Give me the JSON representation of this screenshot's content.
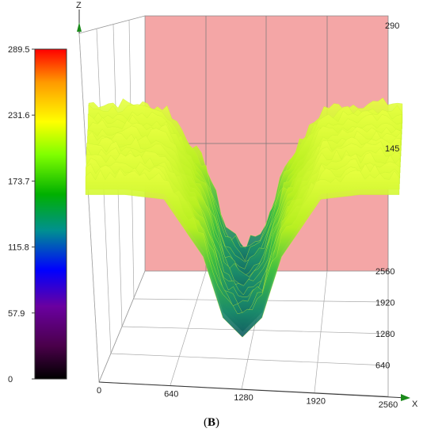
{
  "caption": {
    "prefix": "(",
    "label": "B",
    "suffix": ")"
  },
  "chart_data": {
    "type": "surface",
    "title": "",
    "axes": {
      "x": {
        "label": "X",
        "ticks": [
          "0",
          "640",
          "1280",
          "1920",
          "2560"
        ],
        "range": [
          0,
          2560
        ]
      },
      "y": {
        "label": "",
        "ticks": [
          "640",
          "1280",
          "1920",
          "2560"
        ],
        "range": [
          0,
          2560
        ]
      },
      "z": {
        "label": "Z",
        "ticks": [
          "145",
          "290"
        ],
        "range": [
          0,
          290
        ]
      }
    },
    "colorbar": {
      "ticks": [
        "0",
        "57.9",
        "115.8",
        "173.7",
        "231.6",
        "289.5"
      ],
      "range": [
        0,
        289.5
      ],
      "colors": [
        "#000000",
        "#5a005a",
        "#0000ff",
        "#00b000",
        "#7fff00",
        "#ffff00",
        "#ff9900",
        "#ff0000"
      ]
    },
    "profile_x": [
      0,
      320,
      640,
      960,
      1120,
      1280,
      1440,
      1600,
      1920,
      2240,
      2560
    ],
    "profile_z": [
      232,
      232,
      228,
      178,
      125,
      108,
      125,
      178,
      228,
      232,
      232
    ],
    "wall_color": "#f4a6a6",
    "grid": true
  }
}
